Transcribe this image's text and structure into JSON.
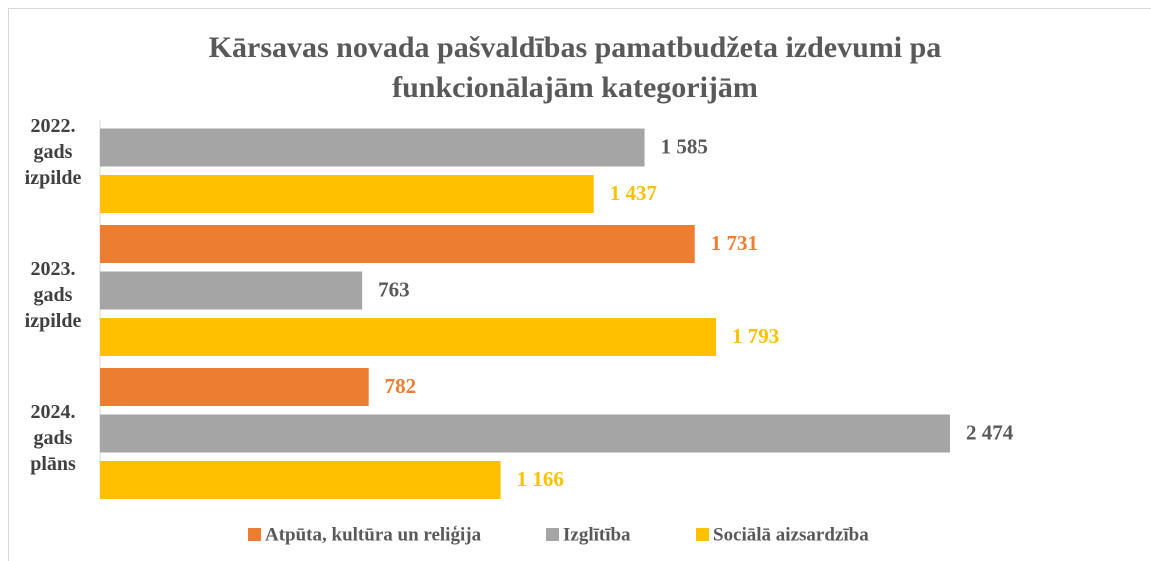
{
  "chart_data": {
    "type": "bar",
    "orientation": "horizontal",
    "title": "Kārsavas novada pašvaldības pamatbudžeta izdevumi pa funkcionālajām kategorijām",
    "categories": [
      "2022. gads izpilde",
      "2023. gads izpilde",
      "2024. gads plāns"
    ],
    "series": [
      {
        "name": "Atpūta, kultūra un reliģija",
        "color": "#ed7d31",
        "label_color": "#ed7d31",
        "values": [
          null,
          1731,
          782
        ],
        "value_labels": [
          null,
          "1 731",
          "782"
        ]
      },
      {
        "name": "Izglītība",
        "color": "#a5a5a5",
        "label_color": "#595959",
        "values": [
          1585,
          763,
          2474
        ],
        "value_labels": [
          "1 585",
          "763",
          "2 474"
        ]
      },
      {
        "name": "Sociālā aizsardzība",
        "color": "#ffc000",
        "label_color": "#ffc000",
        "values": [
          1437,
          1793,
          1166
        ],
        "value_labels": [
          "1 437",
          "1 793",
          "1 166"
        ]
      }
    ],
    "legend": "bottom"
  }
}
